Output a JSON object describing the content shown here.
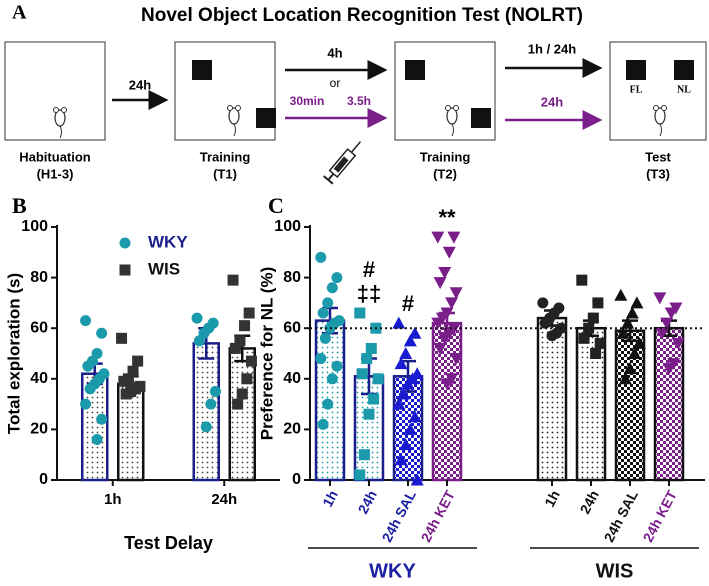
{
  "diagram": {
    "panel_label": "A",
    "title": "Novel Object Location Recognition Test (NOLRT)",
    "stages": [
      {
        "label": "Habituation",
        "sublabel": "(H1-3)"
      },
      {
        "label": "Training",
        "sublabel": "(T1)"
      },
      {
        "label": "Training",
        "sublabel": "(T2)"
      },
      {
        "label": "Test",
        "sublabel": "(T3)"
      }
    ],
    "arrows": {
      "first": "24h",
      "second_top": "4h",
      "or": "or",
      "second_bottom_left": "30min",
      "second_bottom_right": "3.5h",
      "third_top": "1h / 24h",
      "third_bottom": "24h"
    },
    "object_labels": [
      "FL",
      "NL"
    ]
  },
  "chart_data": [
    {
      "type": "bar",
      "panel_label": "B",
      "ylabel": "Total exploration (s)",
      "xlabel": "Test Delay",
      "categories": [
        "1h",
        "24h"
      ],
      "ylim": [
        0,
        100
      ],
      "yticks": [
        0,
        20,
        40,
        60,
        80,
        100
      ],
      "legend": "top",
      "series": [
        {
          "name": "WKY",
          "color": "#1a9aaa",
          "edgecolor": "#1b1f8a",
          "marker": "circle",
          "values": [
            42,
            54
          ],
          "errors": [
            4,
            6
          ],
          "points": [
            [
              63,
              58,
              50,
              47,
              45,
              42,
              40,
              38,
              36,
              30,
              24,
              16
            ],
            [
              64,
              62,
              60,
              58,
              55,
              35,
              30,
              21
            ]
          ]
        },
        {
          "name": "WIS",
          "color": "#333333",
          "edgecolor": "#111111",
          "marker": "square",
          "values": [
            38,
            52
          ],
          "errors": [
            3,
            5
          ],
          "points": [
            [
              56,
              47,
              43,
              40,
              39,
              37,
              36,
              35,
              34
            ],
            [
              79,
              66,
              61,
              55,
              52,
              47,
              40,
              34,
              30
            ]
          ]
        }
      ]
    },
    {
      "type": "bar",
      "panel_label": "C",
      "ylabel": "Preference for NL (%)",
      "categories": [
        "1h",
        "24h",
        "24h SAL",
        "24h KET",
        "1h",
        "24h",
        "24h SAL",
        "24h KET"
      ],
      "label_colors": [
        "#1b1fa0",
        "#1b1fa0",
        "#1b1fa0",
        "#7a1e8a",
        "#111111",
        "#111111",
        "#111111",
        "#7a1e8a"
      ],
      "groups": [
        "WKY",
        "WIS"
      ],
      "values": [
        63,
        41,
        41,
        62,
        64,
        60,
        59,
        60
      ],
      "errors": [
        5,
        7,
        6,
        4,
        3,
        3,
        4,
        3
      ],
      "colors": [
        "#1a9aaa",
        "#1a9aaa",
        "#1a1ad0",
        "#7a1e8a",
        "#222222",
        "#222222",
        "#111111",
        "#7a1e8a"
      ],
      "edgecolors": [
        "#1b1f8a",
        "#1b1f8a",
        "#1b1f8a",
        "#7a1e8a",
        "#111111",
        "#111111",
        "#111111",
        "#111111"
      ],
      "patterns": [
        "dots",
        "dots",
        "checker",
        "checker",
        "dots",
        "dots",
        "checker",
        "checker"
      ],
      "markers": [
        "circle",
        "square",
        "triangle-up",
        "triangle-down",
        "circle",
        "square",
        "triangle-up",
        "triangle-down"
      ],
      "points": [
        [
          88,
          80,
          76,
          70,
          66,
          63,
          62,
          60,
          56,
          48,
          45,
          40,
          30,
          22
        ],
        [
          66,
          60,
          52,
          48,
          42,
          40,
          32,
          26,
          10,
          2
        ],
        [
          62,
          58,
          55,
          50,
          46,
          42,
          40,
          38,
          34,
          30,
          25,
          20,
          14,
          8,
          0
        ],
        [
          96,
          96,
          90,
          82,
          78,
          74,
          70,
          66,
          64,
          62,
          60,
          58,
          56,
          52,
          48,
          40,
          38
        ],
        [
          70,
          68,
          66,
          64,
          62,
          60,
          58,
          57
        ],
        [
          79,
          70,
          64,
          60,
          56,
          54,
          50
        ],
        [
          73,
          70,
          66,
          62,
          58,
          54,
          50,
          44,
          40
        ],
        [
          72,
          68,
          66,
          62,
          58,
          54,
          46,
          44
        ]
      ],
      "annotations": [
        null,
        [
          "‡‡",
          "#"
        ],
        [
          "#"
        ],
        [
          "**"
        ],
        null,
        null,
        null,
        null
      ],
      "reference_line": 60,
      "ylim": [
        0,
        100
      ],
      "yticks": [
        0,
        20,
        40,
        60,
        80,
        100
      ]
    }
  ]
}
